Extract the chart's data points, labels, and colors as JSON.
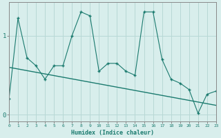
{
  "xlabel": "Humidex (Indice chaleur)",
  "bg_color": "#d8eeec",
  "grid_color": "#b8d8d5",
  "line_color": "#1a7a6e",
  "spine_color": "#888888",
  "x_min": 0,
  "x_max": 23,
  "y_min": -0.08,
  "y_max": 1.42,
  "yticks": [
    0,
    1
  ],
  "xticks": [
    0,
    1,
    2,
    3,
    4,
    5,
    6,
    7,
    8,
    9,
    10,
    11,
    12,
    13,
    14,
    15,
    16,
    17,
    18,
    19,
    20,
    21,
    22,
    23
  ],
  "series1_x": [
    0,
    1,
    2,
    3,
    4,
    5,
    6,
    7,
    8,
    9,
    10,
    11,
    12,
    13,
    14,
    15,
    16,
    17,
    18,
    19,
    20,
    21,
    22,
    23
  ],
  "series1_y": [
    0.2,
    1.22,
    0.72,
    0.62,
    0.45,
    0.62,
    0.62,
    1.0,
    1.3,
    1.25,
    0.55,
    0.65,
    0.65,
    0.55,
    0.5,
    1.3,
    1.3,
    0.7,
    0.45,
    0.4,
    0.32,
    0.02,
    0.26,
    0.3
  ],
  "trend_x": [
    0,
    23
  ],
  "trend_y": [
    0.6,
    0.12
  ]
}
